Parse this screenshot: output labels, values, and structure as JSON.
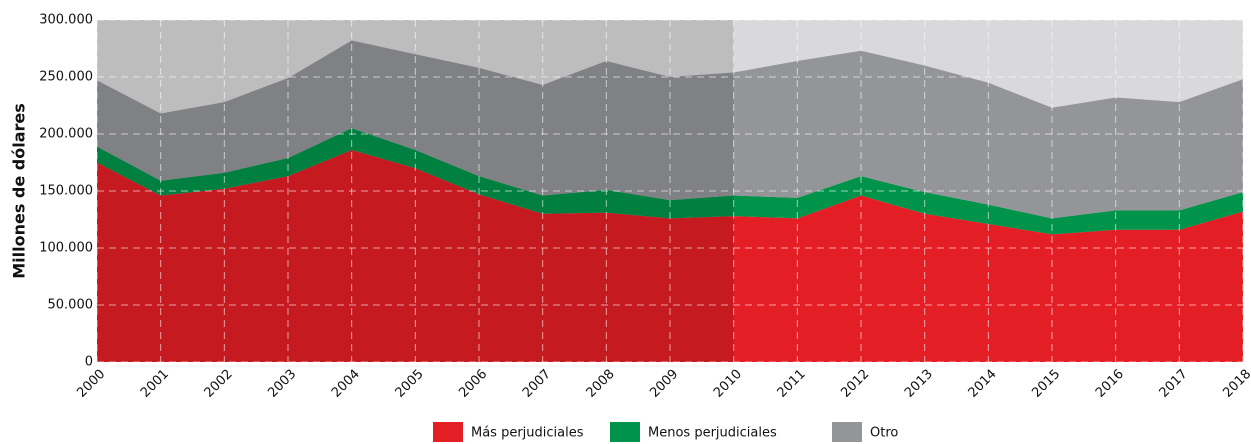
{
  "chart_data": {
    "type": "stacked-area",
    "y_label": "Millones de dólares",
    "categories": [
      "2000",
      "2001",
      "2002",
      "2003",
      "2004",
      "2005",
      "2006",
      "2007",
      "2008",
      "2009",
      "2010",
      "2011",
      "2012",
      "2013",
      "2014",
      "2015",
      "2016",
      "2017",
      "2018"
    ],
    "series": [
      {
        "name": "Más perjudiciales",
        "color": "#e31e24",
        "values": [
          175000,
          146000,
          152000,
          163000,
          186000,
          170000,
          147000,
          130000,
          131000,
          126000,
          128000,
          126000,
          146000,
          130000,
          121000,
          112000,
          116000,
          116000,
          132000
        ]
      },
      {
        "name": "Menos perjudiciales",
        "color": "#00934a",
        "values": [
          14000,
          13000,
          14000,
          16000,
          19000,
          16000,
          16000,
          16000,
          20000,
          16000,
          18000,
          18000,
          17000,
          19000,
          17000,
          14000,
          17000,
          17000,
          17000
        ]
      },
      {
        "name": "Otro",
        "color": "#939598",
        "values": [
          58000,
          59000,
          62000,
          70000,
          77000,
          84000,
          95000,
          97000,
          113000,
          108000,
          108000,
          120000,
          110000,
          111000,
          107000,
          97000,
          99000,
          95000,
          99000
        ]
      }
    ],
    "ylim": [
      0,
      300000
    ],
    "yticks": [
      0,
      {
        "value": 50000,
        "label": "50.000"
      },
      {
        "value": 100000,
        "label": "100.000"
      },
      {
        "value": 150000,
        "label": "150.000"
      },
      {
        "value": 200000,
        "label": "200.000"
      },
      {
        "value": 250000,
        "label": "250.000"
      },
      {
        "value": 300000,
        "label": "300.000"
      }
    ],
    "grid": true
  }
}
